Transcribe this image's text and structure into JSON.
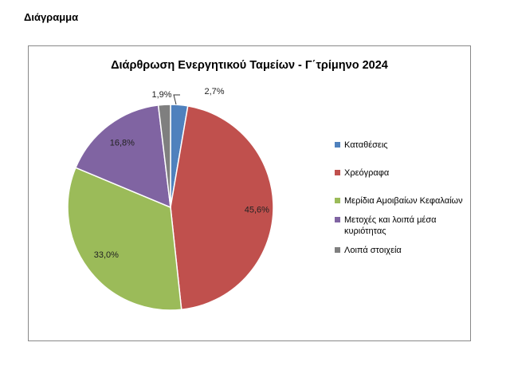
{
  "page": {
    "heading": "Διάγραμμα"
  },
  "chart_data": {
    "type": "pie",
    "title": "Διάρθρωση Ενεργητικού Ταμείων - Γ΄τρίμηνο 2024",
    "legend_position": "right",
    "slices": [
      {
        "name": "Καταθέσεις",
        "value": 2.7,
        "label": "2,7%",
        "color": "#4F81BD"
      },
      {
        "name": "Χρεόγραφα",
        "value": 45.6,
        "label": "45,6%",
        "color": "#C0504D"
      },
      {
        "name": "Μερίδια Αμοιβαίων Κεφαλαίων",
        "value": 33.0,
        "label": "33,0%",
        "color": "#9BBB59"
      },
      {
        "name": "Μετοχές και λοιπά μέσα κυριότητας",
        "value": 16.8,
        "label": "16,8%",
        "color": "#8064A2"
      },
      {
        "name": "Λοιπά στοιχεία",
        "value": 1.9,
        "label": "1,9%",
        "color": "#7F7F7F"
      }
    ]
  }
}
